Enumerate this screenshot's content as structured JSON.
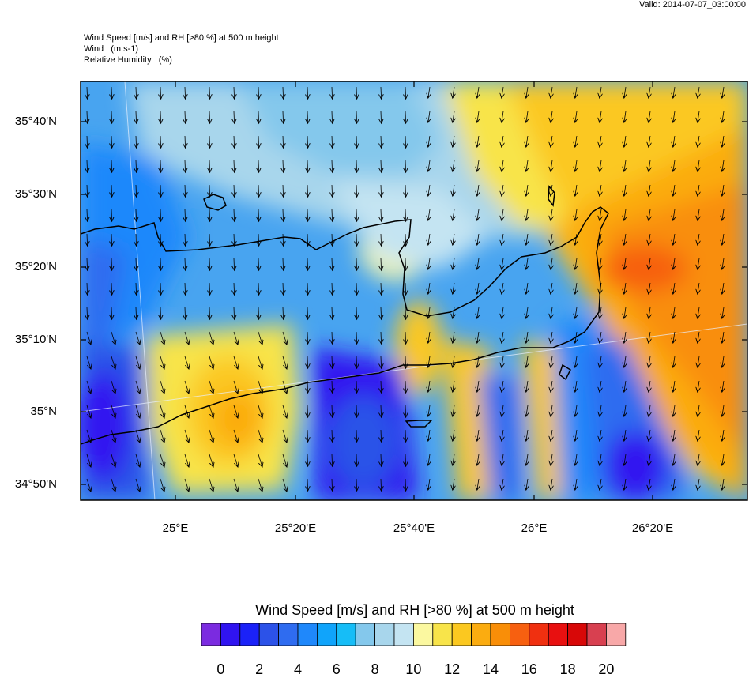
{
  "valid_time": "Valid: 2014-07-07_03:00:00",
  "titles": {
    "line1": "Wind Speed [m/s] and RH [>80 %] at 500 m height",
    "line2": "Wind   (m s-1)",
    "line3": "Relative Humidity   (%)"
  },
  "map": {
    "lat_labels": [
      "35°40'N",
      "35°30'N",
      "35°20'N",
      "35°10'N",
      "35°N",
      "34°50'N"
    ],
    "lon_labels": [
      "25°E",
      "25°20'E",
      "25°40'E",
      "26°E",
      "26°20'E"
    ],
    "frame_color": "#000000",
    "wind_direction": "north-northwest",
    "field_colors": {
      "low": "#3a10f0",
      "mid": "#1a9bff",
      "transition": "#b8e0f0",
      "high": "#fbc820",
      "peak": "#f97e10"
    }
  },
  "colorbar": {
    "title": "Wind Speed [m/s] and RH [>80 %] at 500 m height",
    "colors": [
      "#7b2be0",
      "#3014f0",
      "#1b22f8",
      "#2c52e8",
      "#2f6cf0",
      "#1f88fb",
      "#10a4fb",
      "#16bdf7",
      "#84c8ec",
      "#a8d6ec",
      "#c4e4f2",
      "#fbf8a0",
      "#f8e44a",
      "#fbc820",
      "#fbac10",
      "#f98e08",
      "#f76010",
      "#f03010",
      "#e81010",
      "#d80808",
      "#d84050",
      "#f8a8a8"
    ],
    "tick_labels": [
      "0",
      "2",
      "4",
      "6",
      "8",
      "10",
      "12",
      "14",
      "16",
      "18",
      "20"
    ]
  }
}
